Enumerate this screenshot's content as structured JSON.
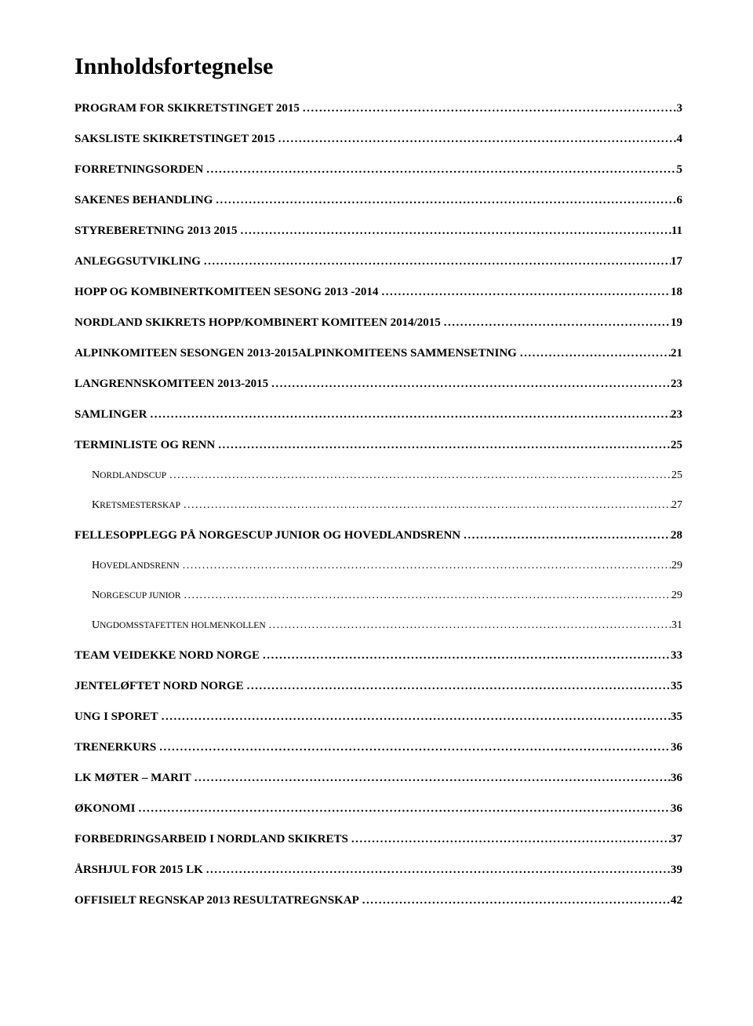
{
  "title": "Innholdsfortegnelse",
  "dot_fill": "..................................................................................................................................................................................................................................................",
  "entries": [
    {
      "label": "PROGRAM FOR SKIKRETSTINGET 2015",
      "page": "3",
      "level": 1
    },
    {
      "label": "SAKSLISTE SKIKRETSTINGET 2015",
      "page": "4",
      "level": 1
    },
    {
      "label": "FORRETNINGSORDEN",
      "page": "5",
      "level": 1
    },
    {
      "label": "SAKENES BEHANDLING",
      "page": "6",
      "level": 1
    },
    {
      "label": "STYREBERETNING 2013 2015",
      "page": "11",
      "level": 1
    },
    {
      "label": "ANLEGGSUTVIKLING",
      "page": "17",
      "level": 1
    },
    {
      "label": "HOPP OG KOMBINERTKOMITEEN SESONG 2013 -2014",
      "page": "18",
      "level": 1
    },
    {
      "label": "NORDLAND SKIKRETS HOPP/KOMBINERT KOMITEEN 2014/2015",
      "page": "19",
      "level": 1
    },
    {
      "label": "ALPINKOMITEEN SESONGEN 2013-2015ALPINKOMITEENS SAMMENSETNING",
      "page": "21",
      "level": 1
    },
    {
      "label": "LANGRENNSKOMITEEN 2013-2015",
      "page": "23",
      "level": 1
    },
    {
      "label": "SAMLINGER",
      "page": "23",
      "level": 1
    },
    {
      "label": "TERMINLISTE OG RENN",
      "page": "25",
      "level": 1
    },
    {
      "label": "Nordlandscup",
      "page": "25",
      "level": 2,
      "smallcaps": true
    },
    {
      "label": "Kretsmesterskap",
      "page": "27",
      "level": 2,
      "smallcaps": true
    },
    {
      "label": "FELLESOPPLEGG PÅ NORGESCUP JUNIOR OG HOVEDLANDSRENN",
      "page": "28",
      "level": 1
    },
    {
      "label": "Hovedlandsrenn",
      "page": "29",
      "level": 2,
      "smallcaps": true
    },
    {
      "label": "Norgescup junior",
      "page": "29",
      "level": 2,
      "smallcaps": true
    },
    {
      "label": "Ungdomsstafetten Holmenkollen",
      "page": "31",
      "level": 2,
      "smallcaps": true
    },
    {
      "label": "TEAM VEIDEKKE NORD NORGE",
      "page": "33",
      "level": 1
    },
    {
      "label": "JENTELØFTET NORD NORGE",
      "page": "35",
      "level": 1
    },
    {
      "label": "UNG I SPORET",
      "page": "35",
      "level": 1
    },
    {
      "label": "TRENERKURS",
      "page": "36",
      "level": 1
    },
    {
      "label": "LK MØTER – MARIT",
      "page": "36",
      "level": 1
    },
    {
      "label": "ØKONOMI",
      "page": "36",
      "level": 1
    },
    {
      "label": "FORBEDRINGSARBEID I NORDLAND SKIKRETS",
      "page": "37",
      "level": 1
    },
    {
      "label": "ÅRSHJUL FOR 2015 LK",
      "page": "39",
      "level": 1
    },
    {
      "label": "OFFISIELT REGNSKAP 2013 RESULTATREGNSKAP",
      "page": "42",
      "level": 1
    }
  ]
}
